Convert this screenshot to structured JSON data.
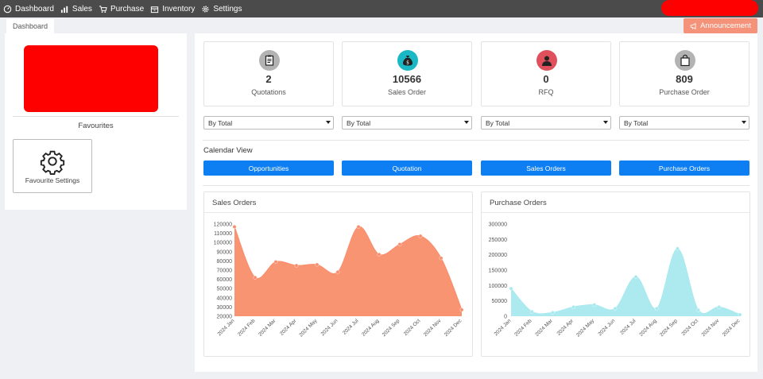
{
  "nav": {
    "items": [
      {
        "label": "Dashboard",
        "icon": "dashboard-icon"
      },
      {
        "label": "Sales",
        "icon": "bar-chart-icon"
      },
      {
        "label": "Purchase",
        "icon": "cart-icon"
      },
      {
        "label": "Inventory",
        "icon": "box-icon"
      },
      {
        "label": "Settings",
        "icon": "gear-icon"
      }
    ]
  },
  "tabs": {
    "active": "Dashboard"
  },
  "announcement": {
    "label": "Announcement",
    "icon": "megaphone-icon"
  },
  "left": {
    "favourites_title": "Favourites",
    "fav_settings_label": "Favourite Settings"
  },
  "stats": [
    {
      "value": "2",
      "label": "Quotations",
      "icon": "clipboard-icon",
      "color": "#b3b3b3"
    },
    {
      "value": "10566",
      "label": "Sales Order",
      "icon": "money-bag-icon",
      "color": "#19b8c4"
    },
    {
      "value": "0",
      "label": "RFQ",
      "icon": "person-icon",
      "color": "#e0505c"
    },
    {
      "value": "809",
      "label": "Purchase Order",
      "icon": "shopping-bag-icon",
      "color": "#b3b3b3"
    }
  ],
  "filters": [
    "By Total",
    "By Total",
    "By Total",
    "By Total"
  ],
  "calendar": {
    "title": "Calendar View",
    "buttons": [
      "Opportunities",
      "Quotation",
      "Sales Orders",
      "Purchase Orders"
    ],
    "button_color": "#0d7ff2"
  },
  "chart_data": [
    {
      "type": "area",
      "title": "Sales Orders",
      "categories": [
        "2024 Jan",
        "2024 Feb",
        "2024 Mar",
        "2024 Apr",
        "2024 May",
        "2024 Jun",
        "2024 Jul",
        "2024 Aug",
        "2024 Sep",
        "2024 Oct",
        "2024 Nov",
        "2024 Dec"
      ],
      "values": [
        117000,
        62000,
        79000,
        75000,
        76000,
        68000,
        117000,
        87000,
        98000,
        107000,
        83000,
        27000
      ],
      "yticks": [
        120000,
        110000,
        100000,
        90000,
        80000,
        70000,
        60000,
        50000,
        40000,
        30000,
        20000
      ],
      "ylim": [
        20000,
        120000
      ],
      "color": "#f98e6c",
      "grid": false
    },
    {
      "type": "area",
      "title": "Purchase Orders",
      "categories": [
        "2024 Jan",
        "2024 Feb",
        "2024 Mar",
        "2024 Apr",
        "2024 May",
        "2024 Jun",
        "2024 Jul",
        "2024 Aug",
        "2024 Sep",
        "2024 Oct",
        "2024 Nov",
        "2024 Dec"
      ],
      "values": [
        90000,
        15000,
        12000,
        30000,
        37000,
        25000,
        128000,
        25000,
        220000,
        20000,
        30000,
        5000
      ],
      "yticks": [
        300000,
        250000,
        200000,
        150000,
        100000,
        50000,
        0
      ],
      "ylim": [
        0,
        300000
      ],
      "color": "#a8e9ef",
      "grid": false
    }
  ]
}
